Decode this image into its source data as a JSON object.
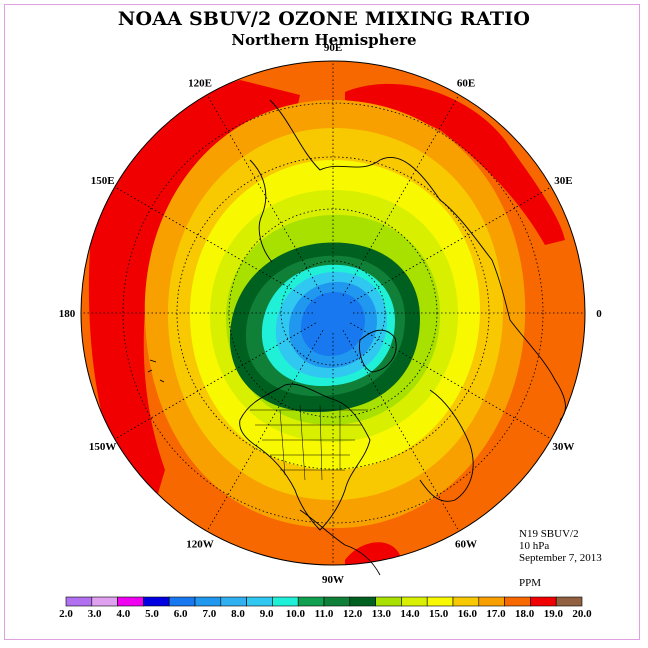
{
  "title": "NOAA SBUV/2 OZONE MIXING RATIO",
  "subtitle": "Northern Hemisphere",
  "info": {
    "instrument": "N19 SBUV/2",
    "level": "10 hPa",
    "date": "September 7, 2013",
    "units": "PPM"
  },
  "longitude_labels": [
    {
      "text": "90E",
      "lon": 90
    },
    {
      "text": "60E",
      "lon": 60
    },
    {
      "text": "30E",
      "lon": 30
    },
    {
      "text": "0",
      "lon": 0
    },
    {
      "text": "30W",
      "lon": -30
    },
    {
      "text": "60W",
      "lon": -60
    },
    {
      "text": "90W",
      "lon": -90
    },
    {
      "text": "120W",
      "lon": -120
    },
    {
      "text": "150W",
      "lon": -150
    },
    {
      "text": "180",
      "lon": 180
    },
    {
      "text": "150E",
      "lon": 150
    },
    {
      "text": "120E",
      "lon": 120
    }
  ],
  "colorbar": {
    "ticks": [
      "2.0",
      "3.0",
      "4.0",
      "5.0",
      "6.0",
      "7.0",
      "8.0",
      "9.0",
      "10.0",
      "11.0",
      "12.0",
      "13.0",
      "14.0",
      "15.0",
      "16.0",
      "17.0",
      "18.0",
      "19.0",
      "20.0"
    ],
    "colors": [
      "#b070f0",
      "#e0a0f0",
      "#f000f0",
      "#0000e0",
      "#1878f0",
      "#2098f0",
      "#30b0f0",
      "#30c8f0",
      "#20f0d8",
      "#10a050",
      "#108038",
      "#006020",
      "#a8e000",
      "#d8f000",
      "#f8f800",
      "#f8c800",
      "#f8a000",
      "#f86800",
      "#f00000",
      "#906040"
    ]
  },
  "chart_data": {
    "type": "heatmap",
    "projection": "north polar stereographic",
    "quantity": "ozone mixing ratio",
    "units": "PPM",
    "pressure_level": "10 hPa",
    "date": "September 7, 2013",
    "range": [
      2.0,
      20.0
    ],
    "contour_levels": [
      2,
      3,
      4,
      5,
      6,
      7,
      8,
      9,
      10,
      11,
      12,
      13,
      14,
      15,
      16,
      17,
      18,
      19,
      20
    ],
    "pattern": [
      {
        "region": "north pole",
        "value": 6.5
      },
      {
        "region": "polar collar ring",
        "value": 11.5
      },
      {
        "region": "mid latitudes",
        "value": 15.0
      },
      {
        "region": "subtropics",
        "value": 17.0
      },
      {
        "region": "tropics rim",
        "value": 18.0
      },
      {
        "region": "maxima near 120E, 30E-60E, 150W, 60W-90W",
        "value": 19.0
      }
    ]
  }
}
